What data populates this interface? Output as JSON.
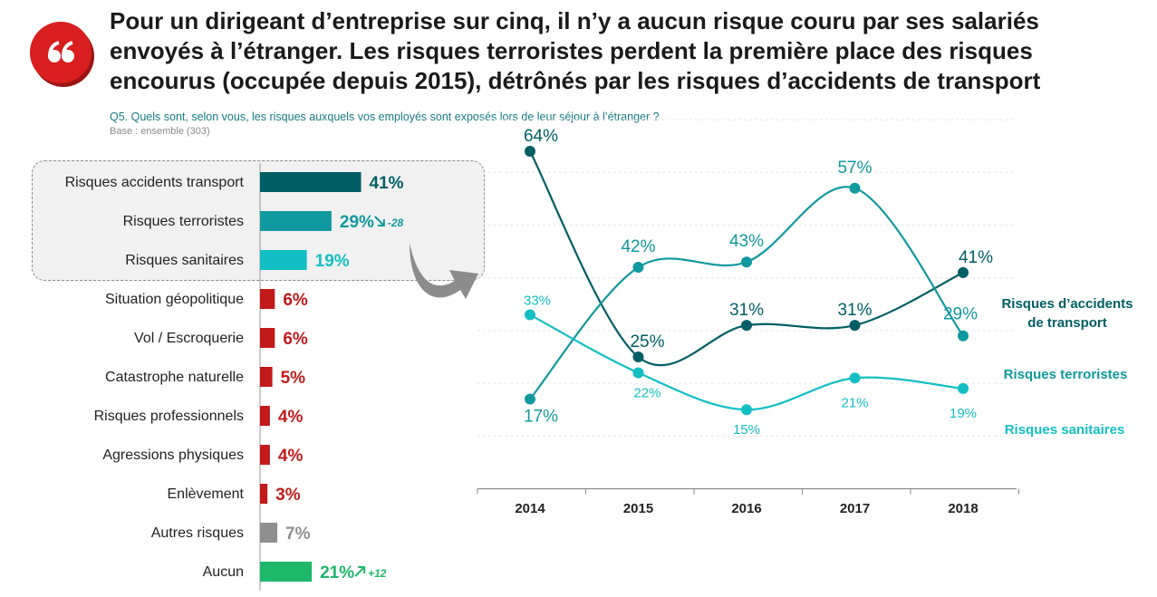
{
  "headline": {
    "line1": "Pour un dirigeant d’entreprise sur cinq, il n’y a aucun risque couru par ses salariés",
    "line2": "envoyés à l’étranger. Les risques terroristes perdent la première place des risques",
    "line3": "encourus (occupée depuis 2015), détrônés par les risques d’accidents de transport"
  },
  "question": "Q5. Quels sont, selon vous, les risques auxquels vos employés sont exposés lors de leur séjour à l’étranger ?",
  "base": "Base : ensemble (303)",
  "icons": {
    "badge": "quote-icon",
    "arrow": "curved-arrow-icon"
  },
  "colors": {
    "transport": "#005e66",
    "terroristes": "#10999f",
    "sanitaires": "#13bfc4",
    "other": "#c21a1a",
    "autres": "#8f8f8f",
    "aucun": "#1db86a",
    "badge": "#d81e1e"
  },
  "chart_data": [
    {
      "type": "bar",
      "orientation": "horizontal",
      "categories": [
        "Risques accidents transport",
        "Risques terroristes",
        "Risques sanitaires",
        "Situation géopolitique",
        "Vol / Escroquerie",
        "Catastrophe naturelle",
        "Risques professionnels",
        "Agressions physiques",
        "Enlèvement",
        "Autres risques",
        "Aucun"
      ],
      "values": [
        41,
        29,
        19,
        6,
        6,
        5,
        4,
        4,
        3,
        7,
        21
      ],
      "value_labels": [
        "41%",
        "29%",
        "19%",
        "6%",
        "6%",
        "5%",
        "4%",
        "4%",
        "3%",
        "7%",
        "21%"
      ],
      "bar_colors": [
        "#005e66",
        "#10999f",
        "#13bfc4",
        "#c21a1a",
        "#c21a1a",
        "#c21a1a",
        "#c21a1a",
        "#c21a1a",
        "#c21a1a",
        "#8f8f8f",
        "#1db86a"
      ],
      "changes": [
        {
          "category": "Risques terroristes",
          "label": "-28",
          "direction": "down"
        },
        {
          "category": "Aucun",
          "label": "+12",
          "direction": "up"
        }
      ],
      "highlighted_categories": [
        "Risques accidents transport",
        "Risques terroristes",
        "Risques sanitaires"
      ]
    },
    {
      "type": "line",
      "x": [
        "2014",
        "2015",
        "2016",
        "2017",
        "2018"
      ],
      "series": [
        {
          "name": "Risques d’accidents de transport",
          "legend_lines": [
            "Risques d’accidents",
            "de transport"
          ],
          "values": [
            64,
            25,
            31,
            31,
            41
          ],
          "labels": [
            "64%",
            "25%",
            "31%",
            "31%",
            "41%"
          ],
          "color": "#005e66"
        },
        {
          "name": "Risques terroristes",
          "legend_lines": [
            "Risques terroristes"
          ],
          "values": [
            17,
            42,
            43,
            57,
            29
          ],
          "labels": [
            "17%",
            "42%",
            "43%",
            "57%",
            "29%"
          ],
          "color": "#10999f"
        },
        {
          "name": "Risques sanitaires",
          "legend_lines": [
            "Risques sanitaires"
          ],
          "values": [
            33,
            22,
            15,
            21,
            19
          ],
          "labels": [
            "33%",
            "22%",
            "15%",
            "21%",
            "19%"
          ],
          "color": "#13bfc4"
        }
      ],
      "ylim": [
        0,
        70
      ],
      "grid": true,
      "legend": "right"
    }
  ]
}
